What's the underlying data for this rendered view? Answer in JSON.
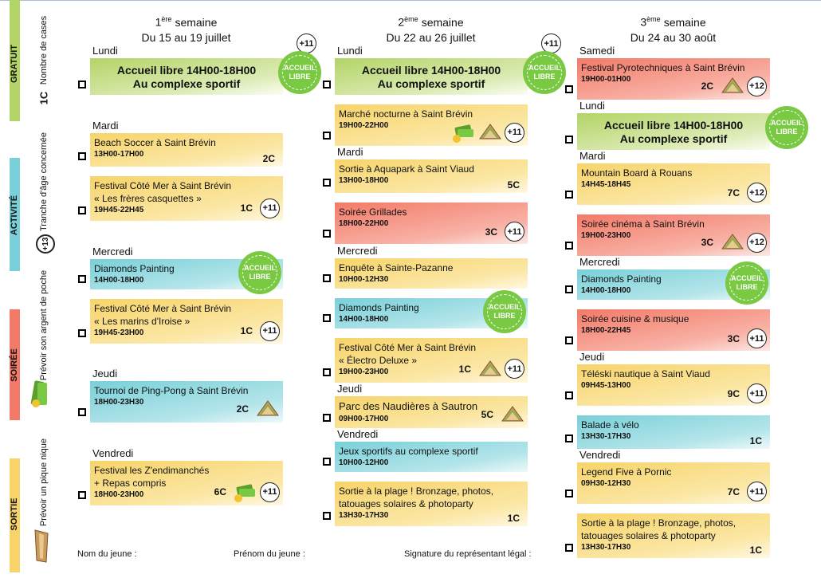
{
  "legend": {
    "sections": [
      "GRATUIT",
      "ACTIVITÉ",
      "SOIRÉE",
      "SORTIE"
    ],
    "items": [
      {
        "label": "Nombre de cases",
        "sample": "1C"
      },
      {
        "label": "Tranche d'âge concernée",
        "sample": "+13"
      },
      {
        "label": "Prévoir son argent de poche"
      },
      {
        "label": "Prévoir un pique nique"
      }
    ]
  },
  "weeks": [
    {
      "number": "1",
      "suffix": "ère",
      "label": "semaine",
      "dates": "Du 15 au 19 juillet",
      "age": "+11",
      "days": [
        {
          "day": "Lundi",
          "events": [
            {
              "kind": "free",
              "lines": [
                "Accueil libre 14H00-18H00",
                "Au complexe sportif"
              ],
              "badge": "ACCUEIL LIBRE"
            }
          ]
        },
        {
          "day": "Mardi",
          "events": [
            {
              "kind": "sortie",
              "lines": [
                "Beach Soccer à Saint Brévin"
              ],
              "time": "13H00-17H00",
              "cost": "2C"
            },
            {
              "kind": "sortie",
              "lines": [
                "Festival Côté Mer à Saint Brévin",
                "« Les frères casquettes »"
              ],
              "time": "19H45-22H45",
              "cost": "1C",
              "age": "+11"
            }
          ]
        },
        {
          "day": "Mercredi",
          "events": [
            {
              "kind": "activite",
              "lines": [
                "Diamonds Painting"
              ],
              "time": "14H00-18H00",
              "badge": "ACCUEIL LIBRE"
            },
            {
              "kind": "sortie",
              "lines": [
                "Festival Côté Mer à Saint Brévin",
                "« Les marins d'Iroise »"
              ],
              "time": "19H45-23H00",
              "cost": "1C",
              "age": "+11"
            }
          ]
        },
        {
          "day": "Jeudi",
          "events": [
            {
              "kind": "activite",
              "lines": [
                "Tournoi de Ping-Pong à Saint Brévin"
              ],
              "time": "18H00-23H30",
              "cost": "2C",
              "sandwich": true
            }
          ]
        },
        {
          "day": "Vendredi",
          "events": [
            {
              "kind": "sortie",
              "lines": [
                "Festival les Z'endimanchés",
                "+ Repas compris"
              ],
              "time": "18H00-23H00",
              "cost": "6C",
              "money": true,
              "age": "+11"
            }
          ]
        }
      ]
    },
    {
      "number": "2",
      "suffix": "ème",
      "label": "semaine",
      "dates": "Du 22 au 26 juillet",
      "age": "+11",
      "days": [
        {
          "day": "Lundi",
          "events": [
            {
              "kind": "free",
              "lines": [
                "Accueil libre 14H00-18H00",
                "Au complexe sportif"
              ],
              "badge": "ACCUEIL LIBRE"
            },
            {
              "kind": "sortie",
              "lines": [
                "Marché nocturne à Saint Brévin"
              ],
              "time": "19H00-22H00",
              "money": true,
              "sandwich": true,
              "age": "+11"
            }
          ]
        },
        {
          "day": "Mardi",
          "events": [
            {
              "kind": "sortie",
              "lines": [
                "Sortie à Aquapark à Saint Viaud"
              ],
              "time": "13H00-18H00",
              "cost": "5C"
            },
            {
              "kind": "soiree",
              "lines": [
                "Soirée Grillades"
              ],
              "time": "18H00-22H00",
              "cost": "3C",
              "age": "+11"
            }
          ]
        },
        {
          "day": "Mercredi",
          "events": [
            {
              "kind": "sortie",
              "lines": [
                "Enquête à Sainte-Pazanne"
              ],
              "time": "10H00-12H30"
            },
            {
              "kind": "activite",
              "lines": [
                "Diamonds Painting"
              ],
              "time": "14H00-18H00",
              "badge": "ACCUEIL LIBRE"
            },
            {
              "kind": "sortie",
              "lines": [
                "Festival Côté Mer à Saint Brévin",
                "« Électro Deluxe »"
              ],
              "time": "19H00-23H00",
              "cost": "1C",
              "sandwich": true,
              "age": "+11"
            }
          ]
        },
        {
          "day": "Jeudi",
          "events": [
            {
              "kind": "sortie",
              "lines": [
                "Parc des Naudières à Sautron"
              ],
              "time": "09H00-17H00",
              "cost": "5C",
              "sandwich": true,
              "big": true
            }
          ]
        },
        {
          "day": "Vendredi",
          "events": [
            {
              "kind": "activite",
              "lines": [
                "Jeux sportifs au complexe sportif"
              ],
              "time": "10H00-12H00"
            },
            {
              "kind": "sortie",
              "lines": [
                "Sortie à la plage ! Bronzage, photos,",
                "tatouages solaires & photoparty"
              ],
              "time": "13H30-17H30",
              "cost": "1C"
            }
          ]
        }
      ]
    },
    {
      "number": "3",
      "suffix": "ème",
      "label": "semaine",
      "dates": "Du 24 au 30 août",
      "days": [
        {
          "day": "Samedi",
          "events": [
            {
              "kind": "soiree",
              "lines": [
                "Festival Pyrotechniques à Saint Brévin"
              ],
              "time": "19H00-01H00",
              "cost": "2C",
              "sandwich": true,
              "age": "+12"
            }
          ]
        },
        {
          "day": "Lundi",
          "events": [
            {
              "kind": "free",
              "lines": [
                "Accueil libre 14H00-18H00",
                "Au complexe sportif"
              ],
              "badge": "ACCUEIL LIBRE"
            }
          ]
        },
        {
          "day": "Mardi",
          "events": [
            {
              "kind": "sortie",
              "lines": [
                "Mountain Board à Rouans"
              ],
              "time": "14H45-18H45",
              "cost": "7C",
              "age": "+12"
            },
            {
              "kind": "soiree",
              "lines": [
                "Soirée cinéma à Saint Brévin"
              ],
              "time": "19H00-23H00",
              "cost": "3C",
              "sandwich": true,
              "age": "+12"
            }
          ]
        },
        {
          "day": "Mercredi",
          "events": [
            {
              "kind": "activite",
              "lines": [
                "Diamonds Painting"
              ],
              "time": "14H00-18H00",
              "badge": "ACCUEIL LIBRE"
            },
            {
              "kind": "soiree",
              "lines": [
                "Soirée cuisine & musique"
              ],
              "time": "18H00-22H45",
              "cost": "3C",
              "age": "+11"
            }
          ]
        },
        {
          "day": "Jeudi",
          "events": [
            {
              "kind": "sortie",
              "lines": [
                "Téléski nautique à Saint Viaud"
              ],
              "time": "09H45-13H00",
              "cost": "9C",
              "age": "+11"
            },
            {
              "kind": "activite",
              "lines": [
                "Balade à vélo"
              ],
              "time": "13H30-17H30",
              "cost": "1C"
            }
          ]
        },
        {
          "day": "Vendredi",
          "events": [
            {
              "kind": "sortie",
              "lines": [
                "Legend Five  à Pornic"
              ],
              "time": "09H30-12H30",
              "cost": "7C",
              "age": "+11"
            },
            {
              "kind": "sortie",
              "lines": [
                "Sortie à la plage ! Bronzage, photos,",
                "tatouages solaires & photoparty"
              ],
              "time": "13H30-17H30",
              "cost": "1C"
            }
          ]
        }
      ]
    }
  ],
  "footer": [
    "Nom du jeune :",
    "Prénom du jeune :",
    "Signature du représentant légal :"
  ]
}
